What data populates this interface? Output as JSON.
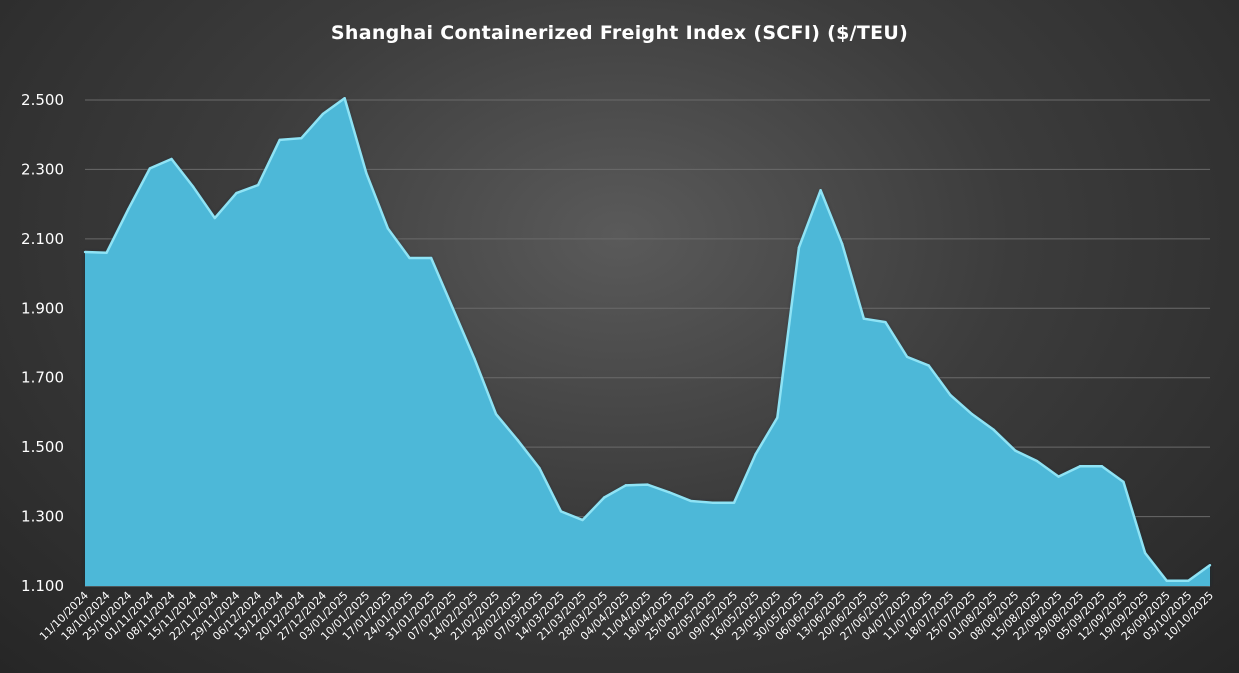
{
  "chart_data": {
    "type": "area",
    "title": "Shanghai Containerized Freight Index (SCFI) ($/TEU)",
    "xlabel": "",
    "ylabel": "",
    "ylim": [
      1100,
      2500
    ],
    "yticks": [
      1100,
      1300,
      1500,
      1700,
      1900,
      2100,
      2300,
      2500
    ],
    "ytick_labels": [
      "1.100",
      "1.300",
      "1.500",
      "1.700",
      "1.900",
      "2.100",
      "2.300",
      "2.500"
    ],
    "grid": true,
    "legend": "none",
    "fill_color": "#4db8d8",
    "edge_color": "#8fe3f5",
    "categories": [
      "11/10/2024",
      "18/10/2024",
      "25/10/2024",
      "01/11/2024",
      "08/11/2024",
      "15/11/2024",
      "22/11/2024",
      "29/11/2024",
      "06/12/2024",
      "13/12/2024",
      "20/12/2024",
      "27/12/2024",
      "03/01/2025",
      "10/01/2025",
      "17/01/2025",
      "24/01/2025",
      "31/01/2025",
      "07/02/2025",
      "14/02/2025",
      "21/02/2025",
      "28/02/2025",
      "07/03/2025",
      "14/03/2025",
      "21/03/2025",
      "28/03/2025",
      "04/04/2025",
      "11/04/2025",
      "18/04/2025",
      "25/04/2025",
      "02/05/2025",
      "09/05/2025",
      "16/05/2025",
      "23/05/2025",
      "30/05/2025",
      "06/06/2025",
      "13/06/2025",
      "20/06/2025",
      "27/06/2025",
      "04/07/2025",
      "11/07/2025",
      "18/07/2025",
      "25/07/2025",
      "01/08/2025",
      "08/08/2025",
      "15/08/2025",
      "22/08/2025",
      "29/08/2025",
      "05/09/2025",
      "12/09/2025",
      "19/09/2025",
      "26/09/2025",
      "03/10/2025",
      "10/10/2025"
    ],
    "series": [
      {
        "values": [
          2062,
          2060,
          2185,
          2303,
          2330,
          2250,
          2160,
          2232,
          2255,
          2385,
          2390,
          2460,
          2505,
          2290,
          2130,
          2045,
          2045,
          1900,
          1755,
          1595,
          1520,
          1440,
          1315,
          1290,
          1355,
          1390,
          1392,
          1370,
          1345,
          1340,
          1340,
          1480,
          1585,
          2075,
          2240,
          2085,
          1870,
          1860,
          1760,
          1735,
          1650,
          1595,
          1550,
          1490,
          1460,
          1415,
          1445,
          1445,
          1400,
          1195,
          1115,
          1115,
          1160
        ]
      }
    ]
  }
}
